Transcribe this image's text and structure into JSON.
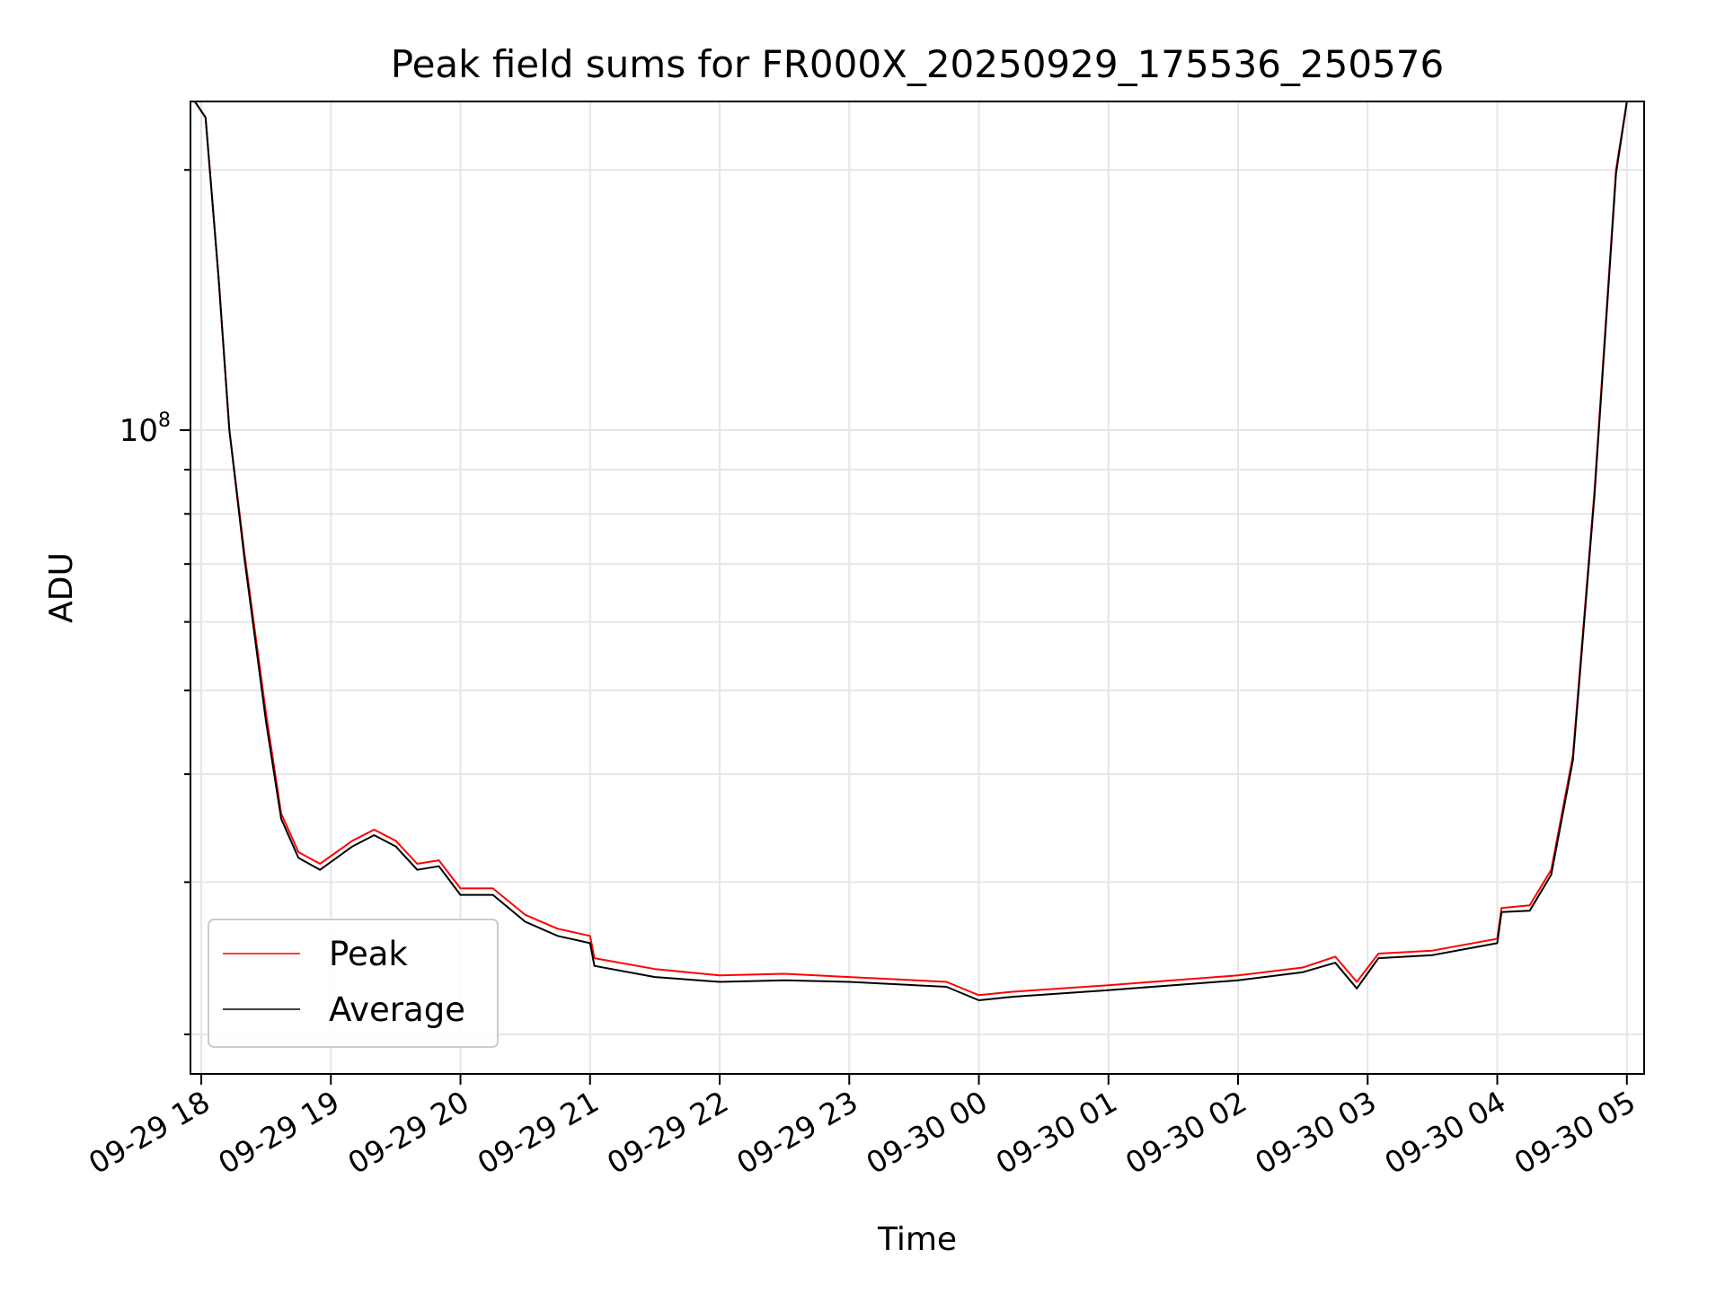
{
  "chart_data": {
    "type": "line",
    "title": "Peak field sums for FR000X_20250929_175536_250576",
    "xlabel": "Time",
    "ylabel": "ADU",
    "yscale": "log",
    "grid": true,
    "legend_position": "lower-left",
    "ylim": [
      18000000,
      240000000
    ],
    "xlim": [
      "2025-09-29 17:55",
      "2025-09-30 05:08"
    ],
    "x_ticks": [
      "09-29 18",
      "09-29 19",
      "09-29 20",
      "09-29 21",
      "09-29 22",
      "09-29 23",
      "09-30 00",
      "09-30 01",
      "09-30 02",
      "09-30 03",
      "09-30 04",
      "09-30 05"
    ],
    "y_ticks": [
      {
        "base": "10",
        "exp": "8",
        "value": 100000000
      }
    ],
    "series": [
      {
        "name": "Peak",
        "color": "#ff0000",
        "points": [
          [
            "2025-09-29 17:57",
            240000000
          ],
          [
            "2025-09-29 18:02",
            230000000
          ],
          [
            "2025-09-29 18:08",
            150000000
          ],
          [
            "2025-09-29 18:13",
            100000000
          ],
          [
            "2025-09-29 18:20",
            72000000
          ],
          [
            "2025-09-29 18:30",
            47000000
          ],
          [
            "2025-09-29 18:37",
            36000000
          ],
          [
            "2025-09-29 18:45",
            32500000
          ],
          [
            "2025-09-29 18:55",
            31500000
          ],
          [
            "2025-09-29 19:10",
            33500000
          ],
          [
            "2025-09-29 19:20",
            34500000
          ],
          [
            "2025-09-29 19:30",
            33500000
          ],
          [
            "2025-09-29 19:40",
            31500000
          ],
          [
            "2025-09-29 19:50",
            31800000
          ],
          [
            "2025-09-29 20:00",
            29500000
          ],
          [
            "2025-09-29 20:15",
            29500000
          ],
          [
            "2025-09-29 20:30",
            27500000
          ],
          [
            "2025-09-29 20:45",
            26500000
          ],
          [
            "2025-09-29 21:00",
            26000000
          ],
          [
            "2025-09-29 21:02",
            24500000
          ],
          [
            "2025-09-29 21:30",
            23800000
          ],
          [
            "2025-09-29 22:00",
            23400000
          ],
          [
            "2025-09-29 22:30",
            23500000
          ],
          [
            "2025-09-29 23:00",
            23300000
          ],
          [
            "2025-09-29 23:45",
            23000000
          ],
          [
            "2025-09-30 00:00",
            22200000
          ],
          [
            "2025-09-30 00:15",
            22400000
          ],
          [
            "2025-09-30 01:00",
            22800000
          ],
          [
            "2025-09-30 01:30",
            23100000
          ],
          [
            "2025-09-30 02:00",
            23400000
          ],
          [
            "2025-09-30 02:30",
            23900000
          ],
          [
            "2025-09-30 02:45",
            24600000
          ],
          [
            "2025-09-30 02:55",
            23000000
          ],
          [
            "2025-09-30 03:05",
            24800000
          ],
          [
            "2025-09-30 03:30",
            25000000
          ],
          [
            "2025-09-30 04:00",
            25800000
          ],
          [
            "2025-09-30 04:02",
            28000000
          ],
          [
            "2025-09-30 04:15",
            28200000
          ],
          [
            "2025-09-30 04:25",
            31000000
          ],
          [
            "2025-09-30 04:35",
            42000000
          ],
          [
            "2025-09-30 04:45",
            85000000
          ],
          [
            "2025-09-30 04:55",
            200000000
          ],
          [
            "2025-09-30 05:00",
            240000000
          ]
        ]
      },
      {
        "name": "Average",
        "color": "#000000",
        "points": [
          [
            "2025-09-29 17:57",
            240000000
          ],
          [
            "2025-09-29 18:02",
            230000000
          ],
          [
            "2025-09-29 18:08",
            150000000
          ],
          [
            "2025-09-29 18:13",
            100000000
          ],
          [
            "2025-09-29 18:20",
            71000000
          ],
          [
            "2025-09-29 18:30",
            46000000
          ],
          [
            "2025-09-29 18:37",
            35500000
          ],
          [
            "2025-09-29 18:45",
            32000000
          ],
          [
            "2025-09-29 18:55",
            31000000
          ],
          [
            "2025-09-29 19:10",
            33000000
          ],
          [
            "2025-09-29 19:20",
            34000000
          ],
          [
            "2025-09-29 19:30",
            33000000
          ],
          [
            "2025-09-29 19:40",
            31000000
          ],
          [
            "2025-09-29 19:50",
            31300000
          ],
          [
            "2025-09-29 20:00",
            29000000
          ],
          [
            "2025-09-29 20:15",
            29000000
          ],
          [
            "2025-09-29 20:30",
            27000000
          ],
          [
            "2025-09-29 20:45",
            26000000
          ],
          [
            "2025-09-29 21:00",
            25500000
          ],
          [
            "2025-09-29 21:02",
            24000000
          ],
          [
            "2025-09-29 21:30",
            23300000
          ],
          [
            "2025-09-29 22:00",
            23000000
          ],
          [
            "2025-09-29 22:30",
            23100000
          ],
          [
            "2025-09-29 23:00",
            23000000
          ],
          [
            "2025-09-29 23:45",
            22700000
          ],
          [
            "2025-09-30 00:00",
            21900000
          ],
          [
            "2025-09-30 00:15",
            22100000
          ],
          [
            "2025-09-30 01:00",
            22500000
          ],
          [
            "2025-09-30 01:30",
            22800000
          ],
          [
            "2025-09-30 02:00",
            23100000
          ],
          [
            "2025-09-30 02:30",
            23600000
          ],
          [
            "2025-09-30 02:45",
            24200000
          ],
          [
            "2025-09-30 02:55",
            22600000
          ],
          [
            "2025-09-30 03:05",
            24500000
          ],
          [
            "2025-09-30 03:30",
            24700000
          ],
          [
            "2025-09-30 04:00",
            25500000
          ],
          [
            "2025-09-30 04:02",
            27700000
          ],
          [
            "2025-09-30 04:15",
            27800000
          ],
          [
            "2025-09-30 04:25",
            30600000
          ],
          [
            "2025-09-30 04:35",
            41500000
          ],
          [
            "2025-09-30 04:45",
            84000000
          ],
          [
            "2025-09-30 04:55",
            198000000
          ],
          [
            "2025-09-30 05:00",
            240000000
          ]
        ]
      }
    ]
  }
}
